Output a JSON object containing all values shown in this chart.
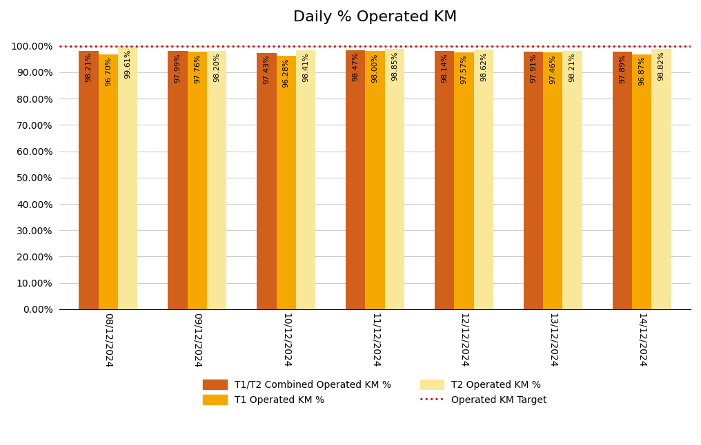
{
  "title": "Daily % Operated KM",
  "dates": [
    "08/12/2024",
    "09/12/2024",
    "10/12/2024",
    "11/12/2024",
    "12/12/2024",
    "13/12/2024",
    "14/12/2024"
  ],
  "t1t2_combined": [
    98.21,
    97.99,
    97.43,
    98.47,
    98.14,
    97.91,
    97.89
  ],
  "t1_operated": [
    96.7,
    97.76,
    96.28,
    98.0,
    97.57,
    97.46,
    96.87
  ],
  "t2_operated": [
    99.61,
    98.2,
    98.41,
    98.85,
    98.62,
    98.21,
    98.82
  ],
  "target": 100.0,
  "bar_width": 0.22,
  "colors": {
    "t1t2_combined": "#D2601A",
    "t1_operated": "#F5A800",
    "t2_operated": "#FAE89A",
    "target": "#CC0000"
  },
  "ylim": [
    0,
    105
  ],
  "yticks": [
    0,
    10,
    20,
    30,
    40,
    50,
    60,
    70,
    80,
    90,
    100
  ],
  "background_color": "#FFFFFF",
  "legend_labels": {
    "t1t2_combined": "T1/T2 Combined Operated KM %",
    "t1_operated": "T1 Operated KM %",
    "t2_operated": "T2 Operated KM %",
    "target": "Operated KM Target"
  }
}
